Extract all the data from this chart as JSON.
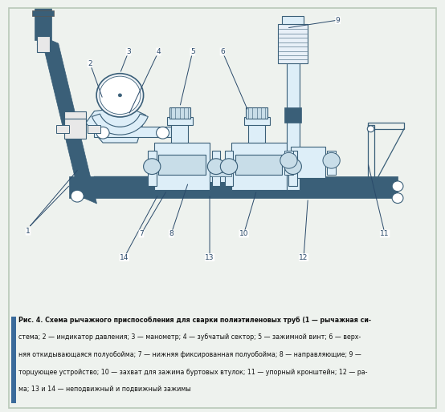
{
  "bg_color": "#eef2ee",
  "border_color": "#b8c8b8",
  "inner_bg": "#ffffff",
  "dc": "#3a5f78",
  "mc": "#5a8aaa",
  "lc": "#a0bfd0",
  "caption_bar": "#3a6a9a",
  "label_color": "#2a4a6a",
  "caption_line1": "Рис. 4. Схема рычажного приспособления для сварки полиэтиленовых труб (1 — рычажная си-",
  "caption_line2": "стема; 2 — индикатор давления; 3 — манометр; 4 — зубчатый сектор; 5 — зажимной винт; 6 — верх-",
  "caption_line3": "няя откидывающаяся полуобойма; 7 — нижняя фиксированная полуобойма; 8 — направляющие; 9 —",
  "caption_line4": "торцующее устройство; 10 — захват для зажима буртовых втулок; 11 — упорный кронштейн; 12 — ра-",
  "caption_line5": "ма; 13 и 14 — неподвижный и подвижный зажимы"
}
